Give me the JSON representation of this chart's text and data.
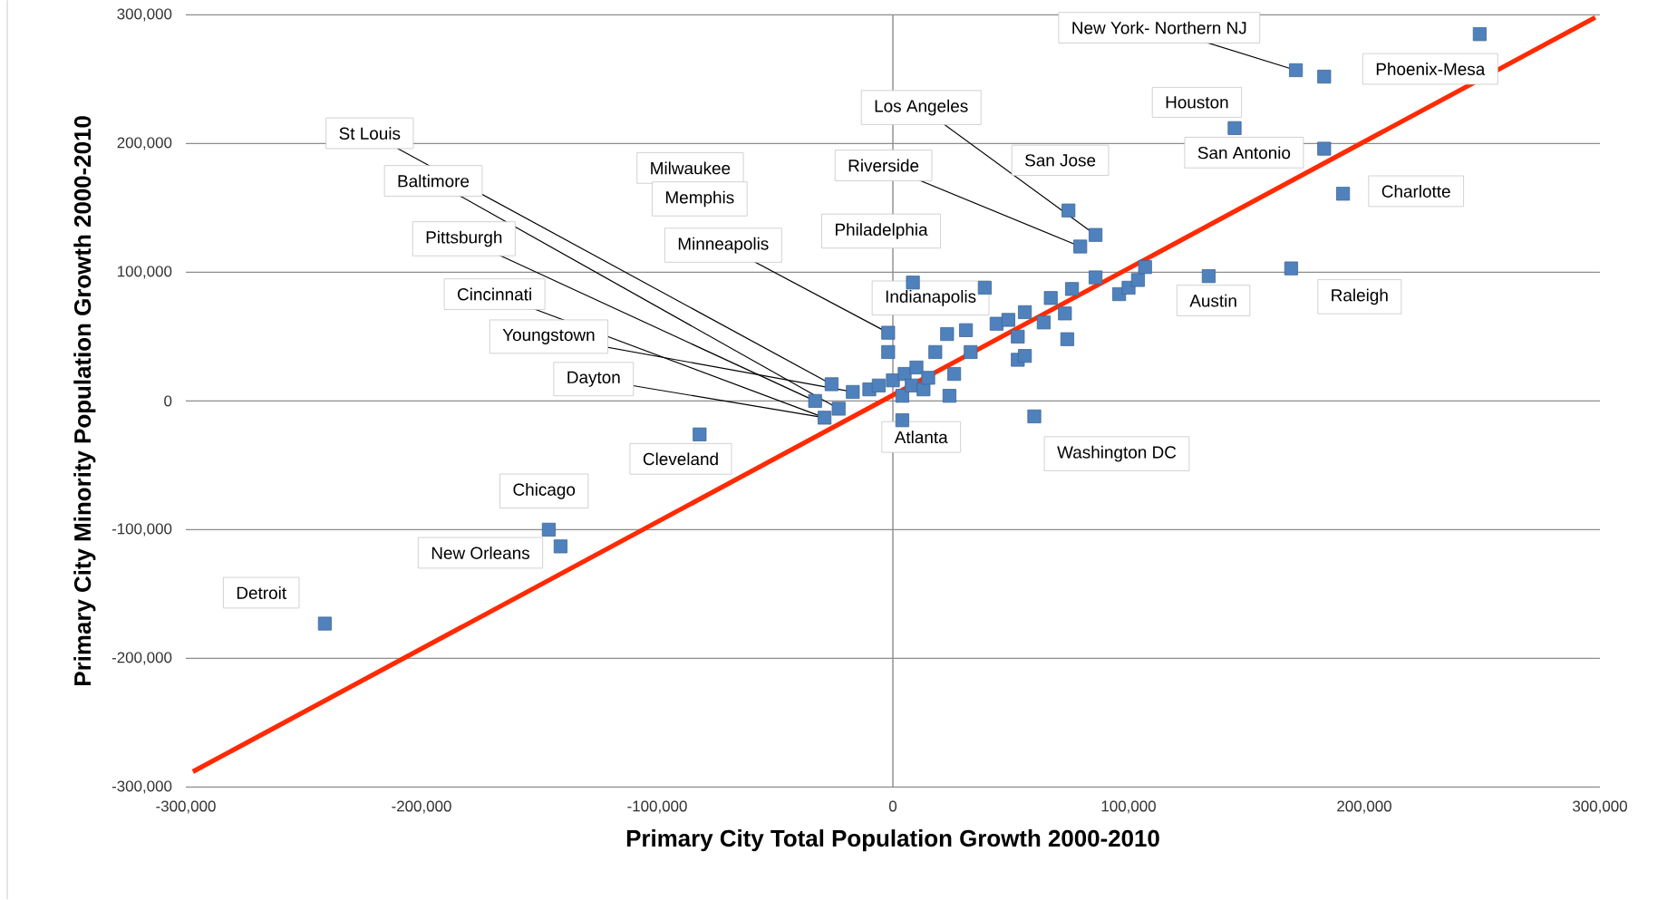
{
  "chart_data": {
    "type": "scatter",
    "xlabel": "Primary City Total Population Growth 2000-2010",
    "ylabel": "Primary City Minority Population Growth 2000-2010",
    "xlim": [
      -300000,
      300000
    ],
    "ylim": [
      -300000,
      300000
    ],
    "xticks": [
      {
        "value": -300000,
        "label": "-300,000"
      },
      {
        "value": -200000,
        "label": "-200,000"
      },
      {
        "value": -100000,
        "label": "-100,000"
      },
      0,
      {
        "value": 100000,
        "label": "100,000"
      },
      {
        "value": 200000,
        "label": "200,000"
      },
      {
        "value": 300000,
        "label": "300,000"
      }
    ],
    "yticks": [
      {
        "value": -300000,
        "label": "-300,000"
      },
      {
        "value": -200000,
        "label": "-200,000"
      },
      {
        "value": -100000,
        "label": "-100,000"
      },
      0,
      {
        "value": 100000,
        "label": "100,000"
      },
      {
        "value": 200000,
        "label": "200,000"
      },
      {
        "value": 300000,
        "label": "300,000"
      }
    ],
    "grid": "y",
    "ref_lines": [
      {
        "axis": "x",
        "value": 0,
        "color": "#8c8c8c"
      }
    ],
    "series": [
      {
        "type": "line",
        "color": "#ff2a00",
        "line_style": "solid",
        "x": [
          -297000,
          298000
        ],
        "values": [
          -288000,
          298000
        ]
      },
      {
        "color": "#4f81bd",
        "marker": "square",
        "x": [
          -241000,
          -146000,
          -141000,
          -82000,
          -33000,
          -29000,
          -26000,
          -23000,
          -17000,
          -10000,
          -6000,
          -2000,
          -2000,
          0,
          4000,
          4000,
          5000,
          8000,
          8500,
          10000,
          13000,
          15000,
          18000,
          23000,
          24000,
          26000,
          31000,
          33000,
          39000,
          44000,
          49000,
          53000,
          53000,
          56000,
          56000,
          60000,
          64000,
          67000,
          73000,
          74000,
          74500,
          76000,
          79500,
          85000,
          86000,
          86000,
          96000,
          100000,
          104000,
          107000,
          134000,
          145000,
          169000,
          171000,
          183000,
          183000,
          191000,
          249000
        ],
        "values": [
          -173000,
          -100000,
          -113000,
          -26000,
          0,
          -13000,
          13000,
          -6000,
          7000,
          9000,
          12000,
          53000,
          38000,
          16000,
          4000,
          -15000,
          21000,
          12000,
          92000,
          26000,
          9000,
          18000,
          38000,
          52000,
          4000,
          21000,
          55000,
          38000,
          88000,
          60000,
          63000,
          50000,
          32000,
          35000,
          69000,
          -12000,
          61000,
          80000,
          68000,
          48000,
          148000,
          87000,
          120000,
          null,
          129000,
          96000,
          83000,
          88000,
          94000,
          104000,
          97000,
          212000,
          103000,
          257000,
          252000,
          196000,
          161000,
          285000
        ]
      }
    ],
    "annotations": [
      {
        "text": "St Louis",
        "x": -26000,
        "y": 13000
      },
      {
        "text": "Baltimore",
        "x": -23000,
        "y": -6000
      },
      {
        "text": "Pittsburgh",
        "x": -33000,
        "y": 0
      },
      {
        "text": "Cincinnati",
        "x": -29000,
        "y": -13000
      },
      {
        "text": "Youngstown",
        "x": -17000,
        "y": 7000
      },
      {
        "text": "Dayton",
        "x": -29000,
        "y": -13000
      },
      "Milwaukee",
      "Memphis",
      {
        "text": "Minneapolis",
        "x": -2000,
        "y": 53000
      },
      "Philadelphia",
      {
        "text": "Indianapolis",
        "x": 8500,
        "y": 92000
      },
      {
        "text": "Los Angeles",
        "x": 86000,
        "y": 129000
      },
      {
        "text": "Riverside",
        "x": 79500,
        "y": 120000
      },
      {
        "text": "San Jose",
        "x": 74500,
        "y": 148000
      },
      {
        "text": "New York- Northern NJ",
        "x": 171000,
        "y": 257000
      },
      {
        "text": "Houston",
        "x": 145000,
        "y": 212000
      },
      {
        "text": "San Antonio",
        "x": 183000,
        "y": 196000
      },
      {
        "text": "Phoenix-Mesa",
        "x": 249000,
        "y": 285000
      },
      {
        "text": "Charlotte",
        "x": 191000,
        "y": 161000
      },
      {
        "text": "Austin",
        "x": 134000,
        "y": 97000
      },
      {
        "text": "Raleigh",
        "x": 169000,
        "y": 103000
      },
      {
        "text": "Atlanta",
        "x": 4000,
        "y": -15000
      },
      {
        "text": "Washington DC",
        "x": 60000,
        "y": -12000
      },
      {
        "text": "Cleveland",
        "x": -82000,
        "y": -26000
      },
      {
        "text": "Chicago",
        "x": -146000,
        "y": -100000
      },
      {
        "text": "New Orleans",
        "x": -141000,
        "y": -113000
      },
      {
        "text": "Detroit",
        "x": -241000,
        "y": -173000
      }
    ]
  }
}
